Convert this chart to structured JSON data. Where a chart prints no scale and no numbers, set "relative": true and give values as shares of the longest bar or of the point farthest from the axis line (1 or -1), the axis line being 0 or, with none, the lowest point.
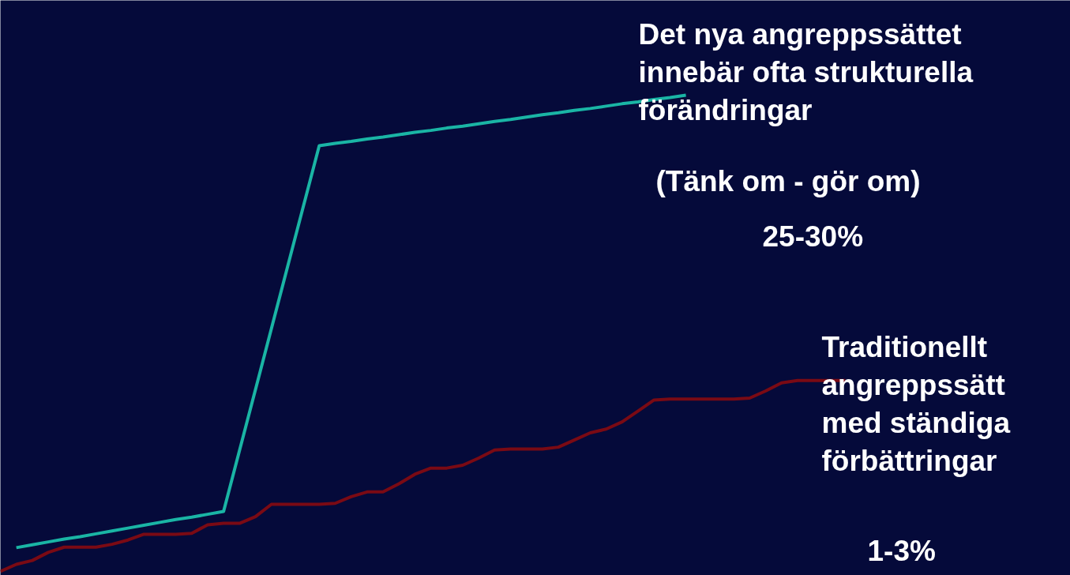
{
  "chart_data": {
    "type": "line",
    "relative": true,
    "tick_labels": false,
    "grid": false,
    "marker": "none",
    "line_style": "solid",
    "annotations": [
      "Det nya angreppssättet\ninnebär ofta strukturella\nförändringar",
      "(Tänk om - gör om)",
      "25-30%",
      "Traditionellt\nangreppssätt\nmed ständiga\nförbättringar",
      "1-3%"
    ],
    "categories": [
      null,
      null,
      null,
      null,
      null,
      null,
      null,
      null,
      null,
      null,
      null,
      null,
      null,
      null,
      null,
      null,
      null,
      null,
      null,
      null,
      null,
      null,
      null,
      null,
      null,
      null,
      null,
      null,
      null,
      null,
      null,
      null,
      null,
      null,
      null,
      null,
      null,
      null,
      null,
      null,
      null,
      null,
      null,
      null,
      null,
      null,
      null,
      null,
      null,
      null,
      null,
      null,
      null,
      null
    ],
    "series": [
      {
        "color": "#1ab5a5",
        "values": [
          null,
          0.05,
          0.056,
          0.062,
          0.068,
          0.073,
          0.079,
          0.085,
          0.091,
          0.097,
          0.103,
          0.109,
          0.114,
          0.12,
          0.126,
          0.254,
          0.382,
          0.51,
          0.638,
          0.766,
          0.894,
          0.899,
          0.903,
          0.908,
          0.912,
          0.917,
          0.922,
          0.926,
          0.931,
          0.935,
          0.94,
          0.945,
          0.949,
          0.954,
          0.959,
          0.963,
          0.968,
          0.972,
          0.977,
          0.982,
          0.986,
          0.991,
          0.995,
          1.0,
          null,
          null,
          null,
          null,
          null,
          null,
          null,
          null,
          null,
          null
        ]
      },
      {
        "color": "#7a0a14",
        "values": [
          0,
          0.015,
          0.023,
          0.04,
          0.051,
          0.051,
          0.051,
          0.057,
          0.066,
          0.078,
          0.078,
          0.078,
          0.08,
          0.098,
          0.101,
          0.101,
          0.115,
          0.141,
          0.141,
          0.141,
          0.141,
          0.143,
          0.157,
          0.167,
          0.167,
          0.184,
          0.204,
          0.217,
          0.217,
          0.223,
          0.238,
          0.255,
          0.257,
          0.257,
          0.257,
          0.261,
          0.276,
          0.291,
          0.299,
          0.314,
          0.337,
          0.36,
          0.362,
          0.362,
          0.362,
          0.362,
          0.362,
          0.364,
          0.379,
          0.396,
          0.401,
          0.401,
          0.401,
          0.401
        ]
      }
    ]
  }
}
